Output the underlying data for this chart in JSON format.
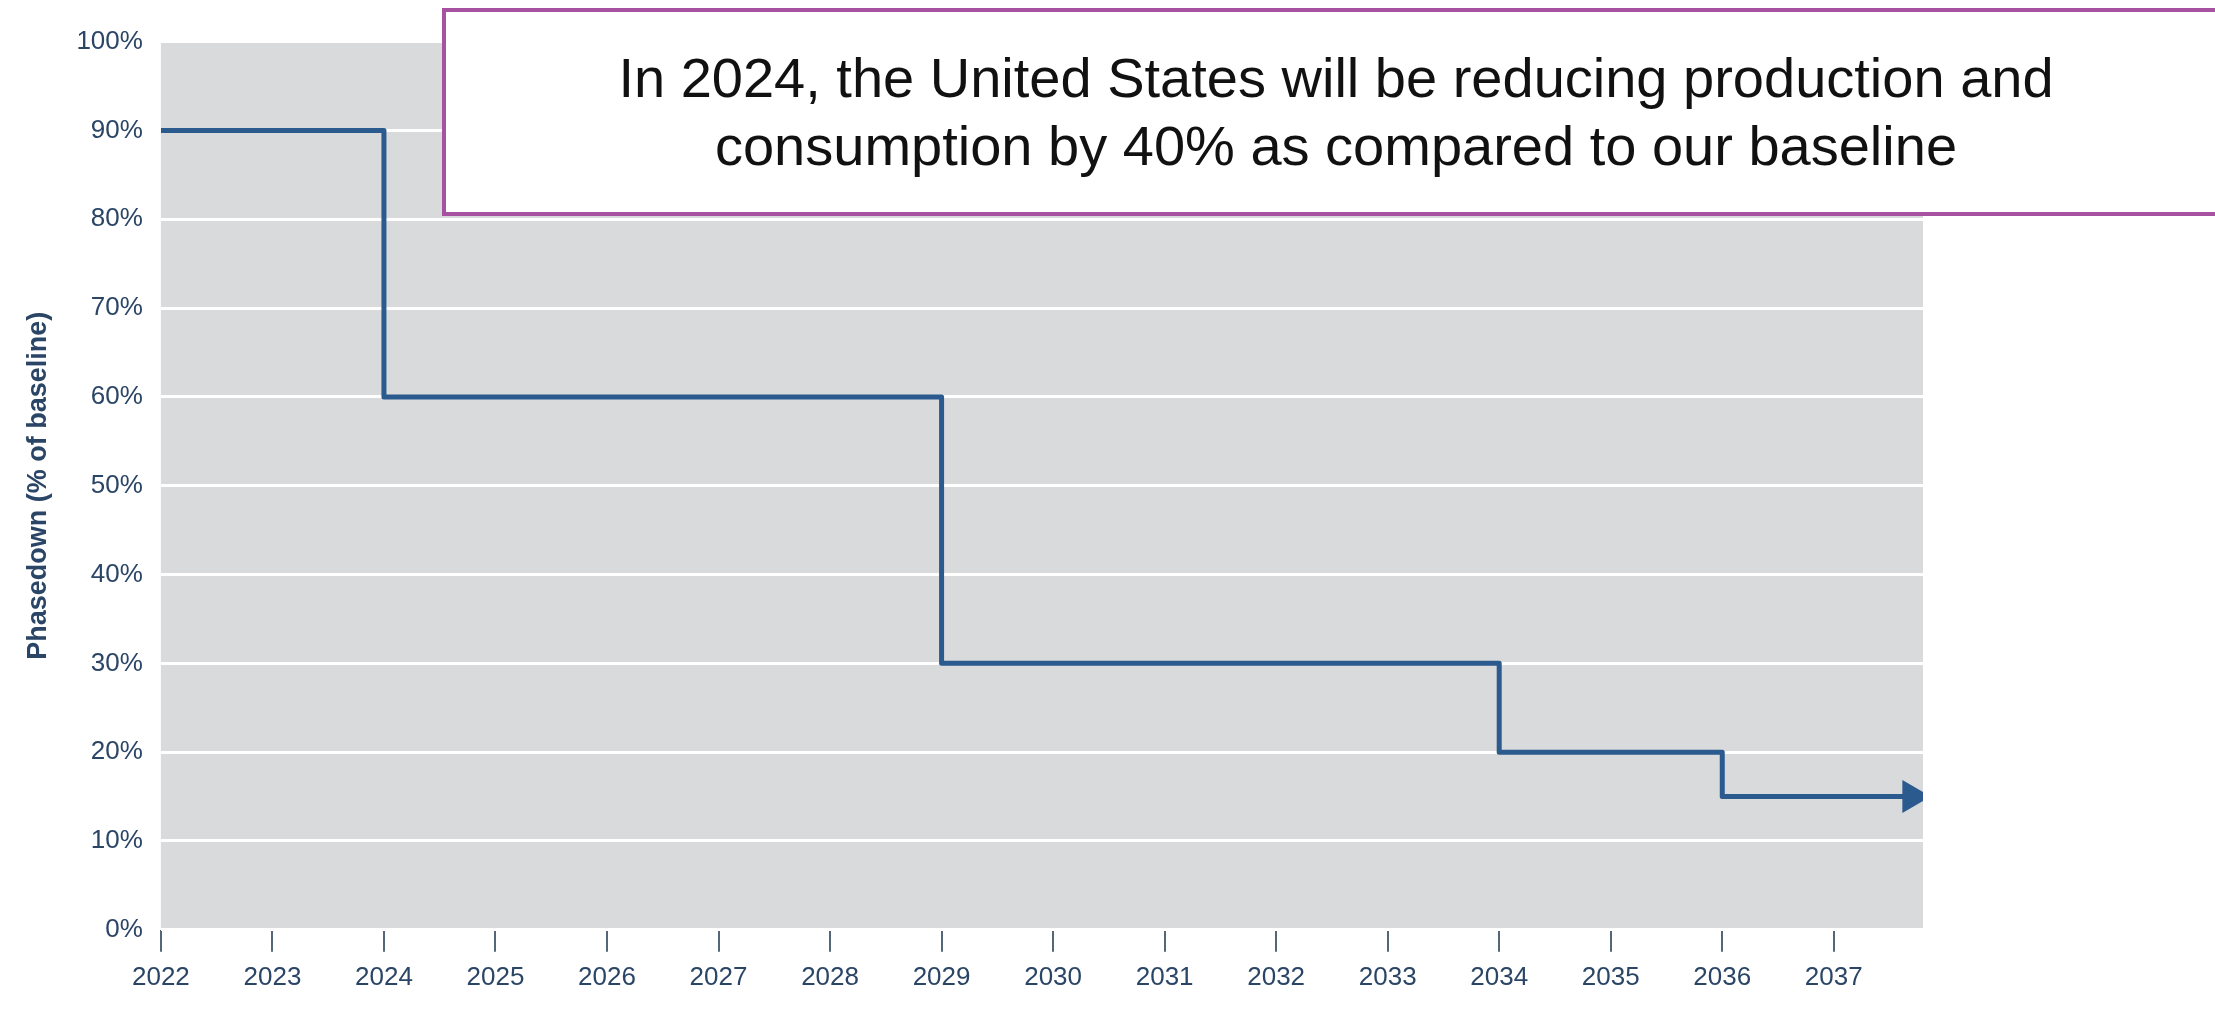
{
  "chart_data": {
    "type": "step",
    "ylabel": "Phasedown (% of baseline)",
    "x": [
      2022,
      2024,
      2029,
      2034,
      2036,
      2037.7
    ],
    "series": [
      {
        "color": "#2b5a8e",
        "values": [
          90,
          60,
          30,
          20,
          15,
          15
        ]
      }
    ],
    "xlim": [
      2022,
      2037.8
    ],
    "xticks": [
      2022,
      2023,
      2024,
      2025,
      2026,
      2027,
      2028,
      2029,
      2030,
      2031,
      2032,
      2033,
      2034,
      2035,
      2036,
      2037
    ],
    "ylim": [
      0,
      100
    ],
    "yticks": [
      {
        "value": 0,
        "label": "0%"
      },
      {
        "value": 10,
        "label": "10%"
      },
      {
        "value": 20,
        "label": "20%"
      },
      {
        "value": 30,
        "label": "30%"
      },
      {
        "value": 40,
        "label": "40%"
      },
      {
        "value": 50,
        "label": "50%"
      },
      {
        "value": 60,
        "label": "60%"
      },
      {
        "value": 70,
        "label": "70%"
      },
      {
        "value": 80,
        "label": "80%"
      },
      {
        "value": 90,
        "label": "90%"
      },
      {
        "value": 100,
        "label": "100%"
      }
    ],
    "grid": "y",
    "legend": false,
    "annotations": [
      "In 2024, the United States will be reducing production and consumption by 40% as compared to our baseline"
    ]
  }
}
